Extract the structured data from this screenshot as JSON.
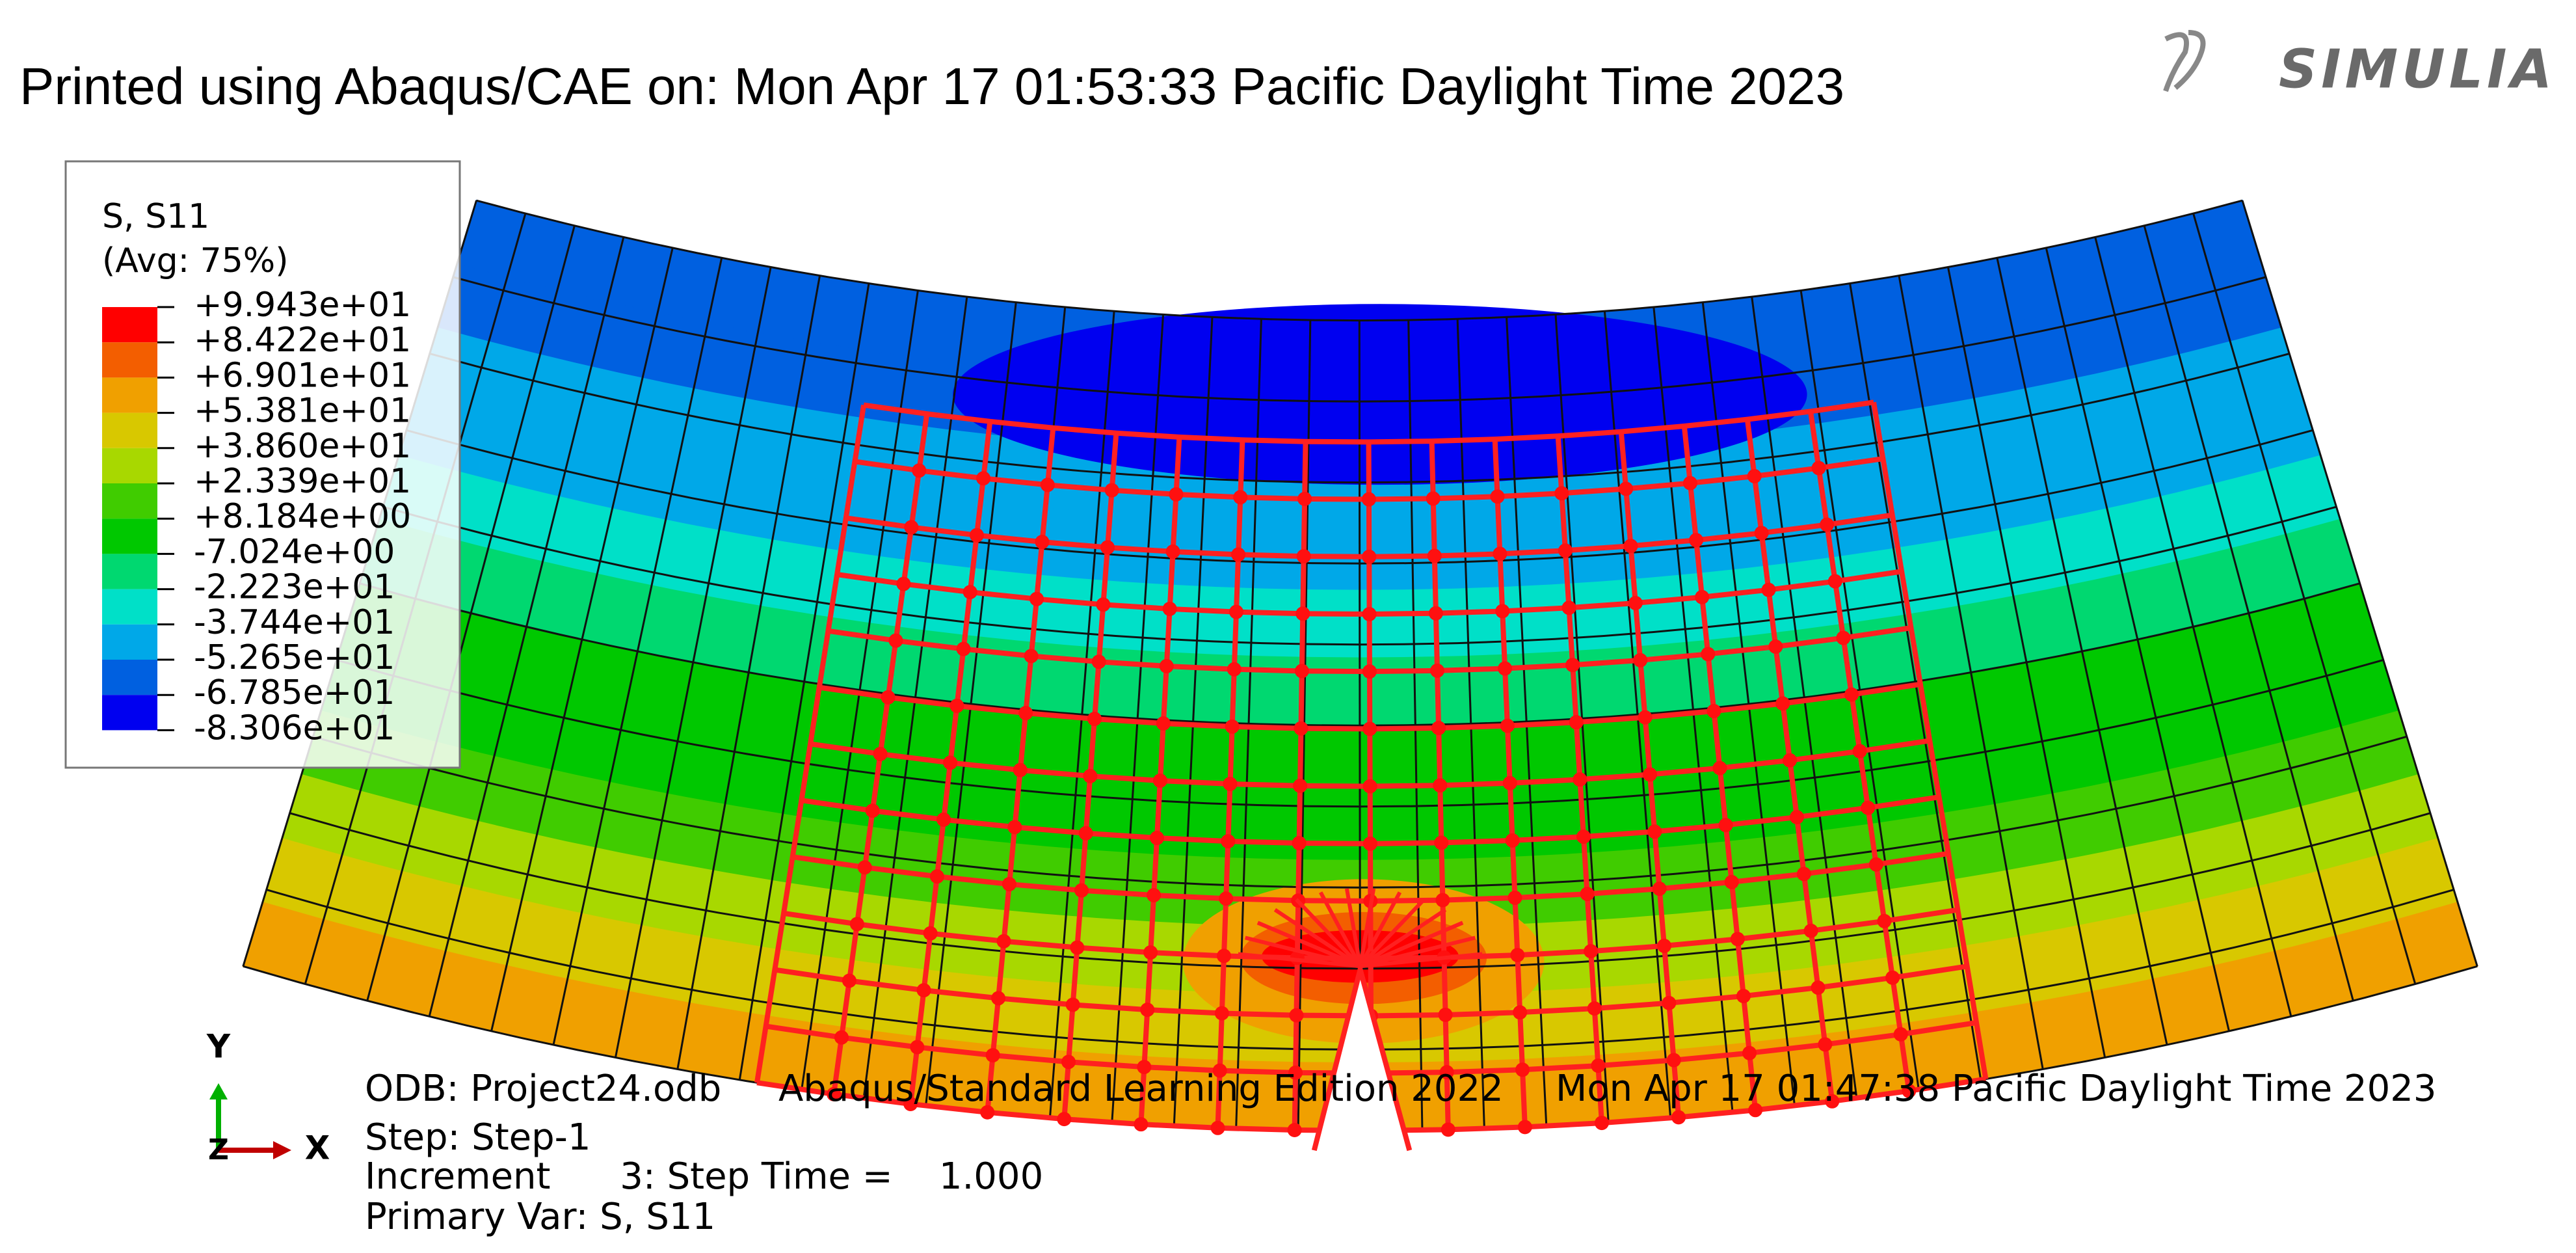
{
  "header": {
    "title": "Printed using Abaqus/CAE on: Mon Apr 17 01:53:33 Pacific Daylight Time 2023",
    "logo": "SIMULIA"
  },
  "legend": {
    "title": "S, S11",
    "subtitle": "(Avg: 75%)",
    "labels": [
      "+9.943e+01",
      "+8.422e+01",
      "+6.901e+01",
      "+5.381e+01",
      "+3.860e+01",
      "+2.339e+01",
      "+8.184e+00",
      "-7.024e+00",
      "-2.223e+01",
      "-3.744e+01",
      "-5.265e+01",
      "-6.785e+01",
      "-8.306e+01"
    ],
    "colors": [
      "#ff0000",
      "#f35e00",
      "#f0a000",
      "#d8c800",
      "#a8d800",
      "#40cc00",
      "#00c800",
      "#00d870",
      "#00e0c8",
      "#00a8e8",
      "#0060e0",
      "#0000f0"
    ]
  },
  "triad": {
    "y": "Y",
    "x": "X",
    "z": "Z"
  },
  "info": {
    "odb": "ODB: Project24.odb",
    "edition": "Abaqus/Standard Learning Edition 2022",
    "date": "Mon Apr 17 01:47:38 Pacific Daylight Time 2023",
    "step": "Step: Step-1",
    "increment": "Increment      3: Step Time =    1.000",
    "primary_var": "Primary Var: S, S11"
  }
}
